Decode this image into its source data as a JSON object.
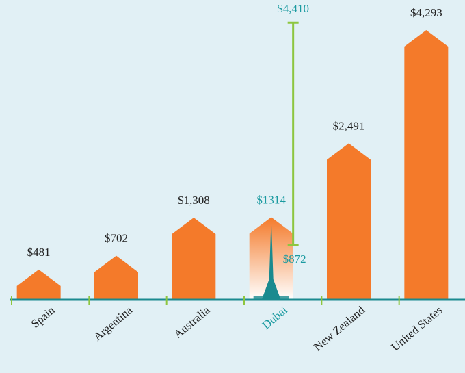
{
  "chart_data": {
    "type": "bar",
    "categories": [
      "Spain",
      "Argentina",
      "Australia",
      "Dubai",
      "New Zealand",
      "United States"
    ],
    "values": [
      481,
      702,
      1308,
      1314,
      2491,
      4293
    ],
    "value_labels": [
      "$481",
      "$702",
      "$1,308",
      "$1314",
      "$2,491",
      "$4,293"
    ],
    "color": "#f47a2a",
    "label_colors": [
      "#222222",
      "#222222",
      "#222222",
      "#1a9aa0",
      "#222222",
      "#222222"
    ],
    "ylim": [
      0,
      4500
    ],
    "range": {
      "category": 3,
      "values": [
        872,
        4410
      ],
      "value_labels": [
        "$872",
        "$4,410"
      ],
      "color": "#8dc63f"
    }
  }
}
